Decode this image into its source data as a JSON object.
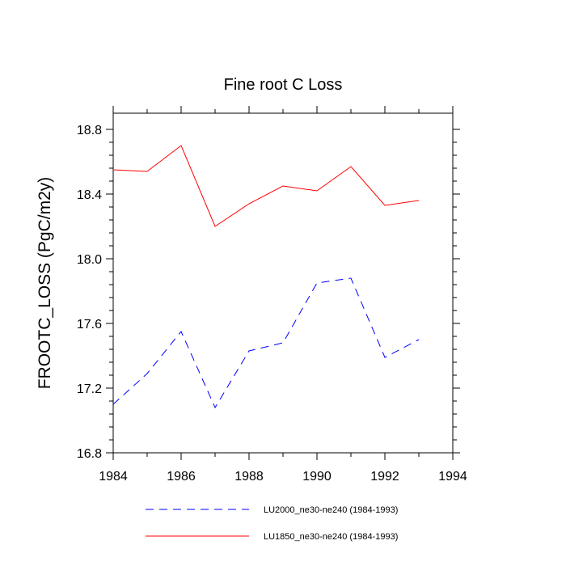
{
  "chart_data": {
    "type": "line",
    "title": "Fine root C Loss",
    "xlabel": "",
    "ylabel": "FROOTC_LOSS  (PgC/m2y)",
    "xlim": [
      1984,
      1994
    ],
    "ylim": [
      16.8,
      18.9
    ],
    "x_ticks": [
      "1984",
      "1986",
      "1988",
      "1990",
      "1992",
      "1994"
    ],
    "y_ticks": [
      "16.8",
      "17.2",
      "17.6",
      "18.0",
      "18.4",
      "18.8"
    ],
    "x_tick_values": [
      1984,
      1986,
      1988,
      1990,
      1992,
      1994
    ],
    "y_tick_values": [
      16.8,
      17.2,
      17.6,
      18.0,
      18.4,
      18.8
    ],
    "grid": false,
    "legend_position": "bottom",
    "x": [
      1984,
      1985,
      1986,
      1987,
      1988,
      1989,
      1990,
      1991,
      1992,
      1993
    ],
    "series": [
      {
        "name": "LU2000_ne30-ne240 (1984-1993)",
        "color": "#0000ff",
        "style": "dashed",
        "values": [
          17.1,
          17.29,
          17.55,
          17.08,
          17.43,
          17.48,
          17.85,
          17.88,
          17.39,
          17.5
        ]
      },
      {
        "name": "LU1850_ne30-ne240 (1984-1993)",
        "color": "#ff0000",
        "style": "solid",
        "values": [
          18.55,
          18.54,
          18.7,
          18.2,
          18.34,
          18.45,
          18.42,
          18.57,
          18.33,
          18.36
        ]
      }
    ]
  }
}
